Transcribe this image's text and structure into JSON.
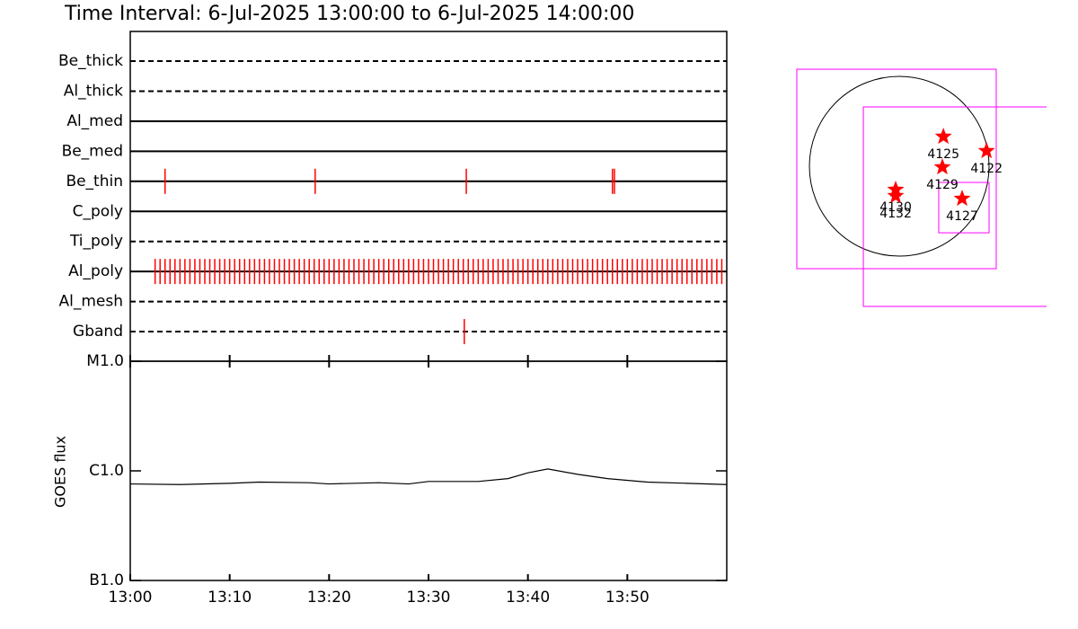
{
  "chart_data": [
    {
      "type": "timeline",
      "title": "Time Interval:  6-Jul-2025 13:00:00 to  6-Jul-2025 14:00:00",
      "xlim": [
        0,
        60
      ],
      "rows": [
        {
          "name": "Be_thick",
          "style": "dashed",
          "events": []
        },
        {
          "name": "Al_thick",
          "style": "dashed",
          "events": []
        },
        {
          "name": "Al_med",
          "style": "solid",
          "events": []
        },
        {
          "name": "Be_med",
          "style": "solid",
          "events": []
        },
        {
          "name": "Be_thin",
          "style": "solid",
          "events": [
            3.5,
            18.6,
            33.8,
            48.5,
            48.7
          ]
        },
        {
          "name": "C_poly",
          "style": "solid",
          "events": []
        },
        {
          "name": "Ti_poly",
          "style": "dashed",
          "events": []
        },
        {
          "name": "Al_poly",
          "style": "solid",
          "events": [
            2.5,
            3,
            3.5,
            4,
            4.5,
            5,
            5.5,
            6,
            6.5,
            7,
            7.5,
            8,
            8.5,
            9,
            9.5,
            10,
            10.5,
            11,
            11.5,
            12,
            12.5,
            13,
            13.5,
            14,
            14.5,
            15,
            15.5,
            16,
            16.5,
            17,
            17.5,
            18,
            18.5,
            19,
            19.5,
            20,
            20.5,
            21,
            21.5,
            22,
            22.5,
            23,
            23.5,
            24,
            24.5,
            25,
            25.5,
            26,
            26.5,
            27,
            27.5,
            28,
            28.5,
            29,
            29.5,
            30,
            30.5,
            31,
            31.5,
            32,
            32.5,
            33,
            33.5,
            34,
            34.5,
            35,
            35.5,
            36,
            36.5,
            37,
            37.5,
            38,
            38.5,
            39,
            39.5,
            40,
            40.5,
            41,
            41.5,
            42,
            42.5,
            43,
            43.5,
            44,
            44.5,
            45,
            45.5,
            46,
            46.5,
            47,
            47.5,
            48,
            48.5,
            49,
            49.5,
            50,
            50.5,
            51,
            51.5,
            52,
            52.5,
            53,
            53.5,
            54,
            54.5,
            55,
            55.5,
            56,
            56.5,
            57,
            57.5,
            58,
            58.5,
            59,
            59.5
          ]
        },
        {
          "name": "Al_mesh",
          "style": "dashed",
          "events": []
        },
        {
          "name": "Gband",
          "style": "dashed",
          "events": [
            33.6
          ]
        }
      ],
      "color": "#ff0000"
    },
    {
      "type": "line",
      "ylabel": "GOES flux",
      "log": true,
      "xlim": [
        0,
        60
      ],
      "xticks": [
        {
          "value": 0,
          "label": "13:00"
        },
        {
          "value": 10,
          "label": "13:10"
        },
        {
          "value": 20,
          "label": "13:20"
        },
        {
          "value": 30,
          "label": "13:30"
        },
        {
          "value": 40,
          "label": "13:40"
        },
        {
          "value": 50,
          "label": "13:50"
        }
      ],
      "ylim": [
        1e-07,
        1e-05
      ],
      "yticks": [
        {
          "value": 1e-07,
          "label": "B1.0"
        },
        {
          "value": 1e-06,
          "label": "C1.0"
        },
        {
          "value": 1e-05,
          "label": "M1.0"
        }
      ],
      "x": [
        0,
        5,
        10,
        13,
        18,
        20,
        25,
        28,
        30,
        35,
        38,
        40,
        42,
        45,
        48,
        52,
        56,
        60
      ],
      "values": [
        7.6e-07,
        7.5e-07,
        7.7e-07,
        7.9e-07,
        7.8e-07,
        7.6e-07,
        7.8e-07,
        7.6e-07,
        8e-07,
        8e-07,
        8.5e-07,
        9.6e-07,
        1.04e-06,
        9.3e-07,
        8.5e-07,
        7.9e-07,
        7.7e-07,
        7.5e-07
      ],
      "color": "#000000"
    },
    {
      "type": "map",
      "regions": [
        {
          "label": "4125",
          "x": 472,
          "y": 317
        },
        {
          "label": "4122",
          "x": 933,
          "y": 163
        },
        {
          "label": "4129",
          "x": 461,
          "y": -10
        },
        {
          "label": "4130",
          "x": -38,
          "y": -250
        },
        {
          "label": "4132",
          "x": -38,
          "y": -317
        },
        {
          "label": "4127",
          "x": 672,
          "y": -346
        }
      ],
      "boxes": [
        {
          "x": -29,
          "y": -29,
          "size": 2131
        },
        {
          "x": 682,
          "y": -432,
          "size": 2131
        },
        {
          "x": 691,
          "y": -442,
          "size": 538
        }
      ],
      "color": "#ff0000",
      "box_color": "#ff00ff"
    }
  ]
}
